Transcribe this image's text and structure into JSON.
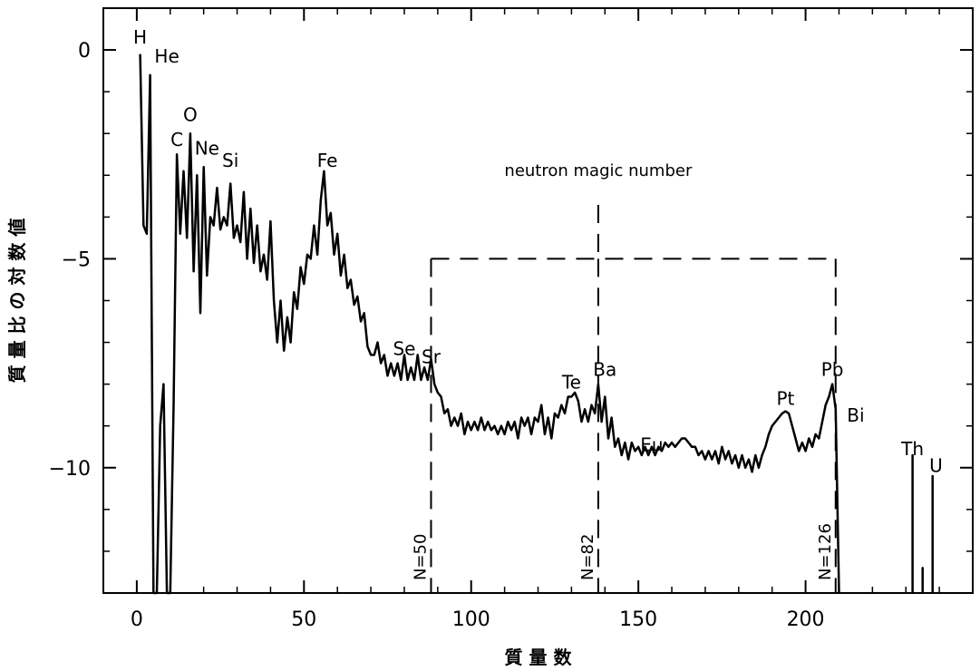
{
  "chart_data": {
    "type": "line",
    "xlabel": "質 量 数",
    "ylabel": "質 量 比 の 対 数 値",
    "xlim": [
      -10,
      250
    ],
    "ylim": [
      -13,
      1
    ],
    "grid": false,
    "x_ticks": [
      0,
      50,
      100,
      150,
      200
    ],
    "y_ticks": [
      0,
      -5,
      -10
    ],
    "y_minor_ticks": [
      1,
      -1,
      -2,
      -3,
      -4,
      -6,
      -7,
      -8,
      -9,
      -11,
      -12,
      -13
    ],
    "x_minor_ticks": [
      10,
      20,
      30,
      40,
      60,
      70,
      80,
      90,
      110,
      120,
      130,
      140,
      160,
      170,
      180,
      190,
      210,
      220,
      230,
      240
    ],
    "series": [
      {
        "values_xy": [
          [
            1,
            -0.1
          ],
          [
            2,
            -4.2
          ],
          [
            3,
            -4.4
          ],
          [
            4,
            -0.6
          ],
          [
            5,
            -13
          ],
          [
            6,
            -13
          ],
          [
            7,
            -9
          ],
          [
            8,
            -8
          ],
          [
            9,
            -13
          ],
          [
            10,
            -13
          ],
          [
            11,
            -8.5
          ],
          [
            12,
            -2.5
          ],
          [
            13,
            -4.4
          ],
          [
            14,
            -2.9
          ],
          [
            15,
            -4.5
          ],
          [
            16,
            -2.0
          ],
          [
            17,
            -5.3
          ],
          [
            18,
            -3.0
          ],
          [
            19,
            -6.3
          ],
          [
            20,
            -2.8
          ],
          [
            21,
            -5.4
          ],
          [
            22,
            -4.0
          ],
          [
            23,
            -4.2
          ],
          [
            24,
            -3.3
          ],
          [
            25,
            -4.3
          ],
          [
            26,
            -4.0
          ],
          [
            27,
            -4.2
          ],
          [
            28,
            -3.2
          ],
          [
            29,
            -4.5
          ],
          [
            30,
            -4.2
          ],
          [
            31,
            -4.6
          ],
          [
            32,
            -3.4
          ],
          [
            33,
            -5.0
          ],
          [
            34,
            -3.8
          ],
          [
            35,
            -5.1
          ],
          [
            36,
            -4.2
          ],
          [
            37,
            -5.3
          ],
          [
            38,
            -4.9
          ],
          [
            39,
            -5.5
          ],
          [
            40,
            -4.1
          ],
          [
            41,
            -6.0
          ],
          [
            42,
            -7.0
          ],
          [
            43,
            -6.0
          ],
          [
            44,
            -7.2
          ],
          [
            45,
            -6.4
          ],
          [
            46,
            -7.0
          ],
          [
            47,
            -5.8
          ],
          [
            48,
            -6.2
          ],
          [
            49,
            -5.2
          ],
          [
            50,
            -5.6
          ],
          [
            51,
            -4.9
          ],
          [
            52,
            -5.0
          ],
          [
            53,
            -4.2
          ],
          [
            54,
            -4.9
          ],
          [
            55,
            -3.6
          ],
          [
            56,
            -2.9
          ],
          [
            57,
            -4.2
          ],
          [
            58,
            -3.9
          ],
          [
            59,
            -4.9
          ],
          [
            60,
            -4.4
          ],
          [
            61,
            -5.4
          ],
          [
            62,
            -4.9
          ],
          [
            63,
            -5.7
          ],
          [
            64,
            -5.5
          ],
          [
            65,
            -6.1
          ],
          [
            66,
            -5.9
          ],
          [
            67,
            -6.5
          ],
          [
            68,
            -6.3
          ],
          [
            69,
            -7.1
          ],
          [
            70,
            -7.3
          ],
          [
            71,
            -7.3
          ],
          [
            72,
            -7.0
          ],
          [
            73,
            -7.5
          ],
          [
            74,
            -7.3
          ],
          [
            75,
            -7.8
          ],
          [
            76,
            -7.5
          ],
          [
            77,
            -7.8
          ],
          [
            78,
            -7.5
          ],
          [
            79,
            -7.9
          ],
          [
            80,
            -7.3
          ],
          [
            81,
            -7.9
          ],
          [
            82,
            -7.6
          ],
          [
            83,
            -7.9
          ],
          [
            84,
            -7.3
          ],
          [
            85,
            -7.9
          ],
          [
            86,
            -7.6
          ],
          [
            87,
            -7.9
          ],
          [
            88,
            -7.4
          ],
          [
            89,
            -8.0
          ],
          [
            90,
            -8.2
          ],
          [
            91,
            -8.3
          ],
          [
            92,
            -8.7
          ],
          [
            93,
            -8.6
          ],
          [
            94,
            -9.0
          ],
          [
            95,
            -8.8
          ],
          [
            96,
            -9.0
          ],
          [
            97,
            -8.7
          ],
          [
            98,
            -9.2
          ],
          [
            99,
            -8.9
          ],
          [
            100,
            -9.1
          ],
          [
            101,
            -8.9
          ],
          [
            102,
            -9.1
          ],
          [
            103,
            -8.8
          ],
          [
            104,
            -9.1
          ],
          [
            105,
            -8.9
          ],
          [
            106,
            -9.1
          ],
          [
            107,
            -9.0
          ],
          [
            108,
            -9.2
          ],
          [
            109,
            -9.0
          ],
          [
            110,
            -9.2
          ],
          [
            111,
            -8.9
          ],
          [
            112,
            -9.1
          ],
          [
            113,
            -8.9
          ],
          [
            114,
            -9.3
          ],
          [
            115,
            -8.8
          ],
          [
            116,
            -9.0
          ],
          [
            117,
            -8.8
          ],
          [
            118,
            -9.2
          ],
          [
            119,
            -8.8
          ],
          [
            120,
            -8.9
          ],
          [
            121,
            -8.5
          ],
          [
            122,
            -9.2
          ],
          [
            123,
            -8.8
          ],
          [
            124,
            -9.3
          ],
          [
            125,
            -8.7
          ],
          [
            126,
            -8.8
          ],
          [
            127,
            -8.5
          ],
          [
            128,
            -8.7
          ],
          [
            129,
            -8.3
          ],
          [
            130,
            -8.3
          ],
          [
            131,
            -8.2
          ],
          [
            132,
            -8.4
          ],
          [
            133,
            -8.9
          ],
          [
            134,
            -8.6
          ],
          [
            135,
            -8.9
          ],
          [
            136,
            -8.5
          ],
          [
            137,
            -8.7
          ],
          [
            138,
            -8.0
          ],
          [
            139,
            -8.9
          ],
          [
            140,
            -8.3
          ],
          [
            141,
            -9.3
          ],
          [
            142,
            -8.8
          ],
          [
            143,
            -9.5
          ],
          [
            144,
            -9.3
          ],
          [
            145,
            -9.7
          ],
          [
            146,
            -9.4
          ],
          [
            147,
            -9.8
          ],
          [
            148,
            -9.4
          ],
          [
            149,
            -9.6
          ],
          [
            150,
            -9.5
          ],
          [
            151,
            -9.7
          ],
          [
            152,
            -9.5
          ],
          [
            153,
            -9.7
          ],
          [
            154,
            -9.5
          ],
          [
            155,
            -9.7
          ],
          [
            156,
            -9.5
          ],
          [
            157,
            -9.6
          ],
          [
            158,
            -9.4
          ],
          [
            159,
            -9.5
          ],
          [
            160,
            -9.4
          ],
          [
            161,
            -9.5
          ],
          [
            162,
            -9.4
          ],
          [
            163,
            -9.3
          ],
          [
            164,
            -9.3
          ],
          [
            165,
            -9.4
          ],
          [
            166,
            -9.5
          ],
          [
            167,
            -9.5
          ],
          [
            168,
            -9.7
          ],
          [
            169,
            -9.6
          ],
          [
            170,
            -9.8
          ],
          [
            171,
            -9.6
          ],
          [
            172,
            -9.8
          ],
          [
            173,
            -9.6
          ],
          [
            174,
            -9.9
          ],
          [
            175,
            -9.5
          ],
          [
            176,
            -9.8
          ],
          [
            177,
            -9.6
          ],
          [
            178,
            -9.9
          ],
          [
            179,
            -9.7
          ],
          [
            180,
            -10.0
          ],
          [
            181,
            -9.7
          ],
          [
            182,
            -10.0
          ],
          [
            183,
            -9.8
          ],
          [
            184,
            -10.1
          ],
          [
            185,
            -9.7
          ],
          [
            186,
            -10.0
          ],
          [
            187,
            -9.7
          ],
          [
            188,
            -9.5
          ],
          [
            189,
            -9.2
          ],
          [
            190,
            -9.0
          ],
          [
            191,
            -8.9
          ],
          [
            192,
            -8.8
          ],
          [
            193,
            -8.7
          ],
          [
            194,
            -8.65
          ],
          [
            195,
            -8.7
          ],
          [
            196,
            -9.0
          ],
          [
            197,
            -9.3
          ],
          [
            198,
            -9.6
          ],
          [
            199,
            -9.4
          ],
          [
            200,
            -9.6
          ],
          [
            201,
            -9.3
          ],
          [
            202,
            -9.5
          ],
          [
            203,
            -9.2
          ],
          [
            204,
            -9.3
          ],
          [
            205,
            -8.9
          ],
          [
            206,
            -8.5
          ],
          [
            207,
            -8.3
          ],
          [
            208,
            -8.0
          ],
          [
            209,
            -8.6
          ],
          [
            210,
            -13
          ]
        ]
      },
      {
        "values_xy": [
          [
            232,
            -13
          ],
          [
            232,
            -9.7
          ],
          [
            232,
            -13
          ]
        ]
      },
      {
        "values_xy": [
          [
            235,
            -13
          ],
          [
            235,
            -12.4
          ],
          [
            235,
            -13
          ]
        ]
      },
      {
        "values_xy": [
          [
            238,
            -13
          ],
          [
            238,
            -10.2
          ],
          [
            238,
            -13
          ]
        ]
      }
    ],
    "element_labels": [
      {
        "text": "H",
        "x": 1,
        "y": 0.15
      },
      {
        "text": "He",
        "x": 9,
        "y": -0.3
      },
      {
        "text": "C",
        "x": 12,
        "y": -2.3
      },
      {
        "text": "O",
        "x": 16,
        "y": -1.7
      },
      {
        "text": "Ne",
        "x": 21,
        "y": -2.5
      },
      {
        "text": "Si",
        "x": 28,
        "y": -2.8
      },
      {
        "text": "Fe",
        "x": 57,
        "y": -2.8
      },
      {
        "text": "Se",
        "x": 80,
        "y": -7.3
      },
      {
        "text": "Sr",
        "x": 88,
        "y": -7.5
      },
      {
        "text": "Te",
        "x": 130,
        "y": -8.1
      },
      {
        "text": "Ba",
        "x": 140,
        "y": -7.8
      },
      {
        "text": "Eu",
        "x": 154,
        "y": -9.6
      },
      {
        "text": "Pt",
        "x": 194,
        "y": -8.5
      },
      {
        "text": "Pb",
        "x": 208,
        "y": -7.8
      },
      {
        "text": "Bi",
        "x": 215,
        "y": -8.9
      },
      {
        "text": "Th",
        "x": 232,
        "y": -9.7
      },
      {
        "text": "U",
        "x": 239,
        "y": -10.1
      }
    ],
    "annotations": {
      "title": "neutron magic number",
      "magic_lines": [
        {
          "label": "N=50",
          "x": 88
        },
        {
          "label": "N=82",
          "x": 138
        },
        {
          "label": "N=126",
          "x": 209
        }
      ],
      "box_top_y": -5,
      "title_anchor": {
        "x": 138,
        "y": -3.45
      }
    }
  }
}
